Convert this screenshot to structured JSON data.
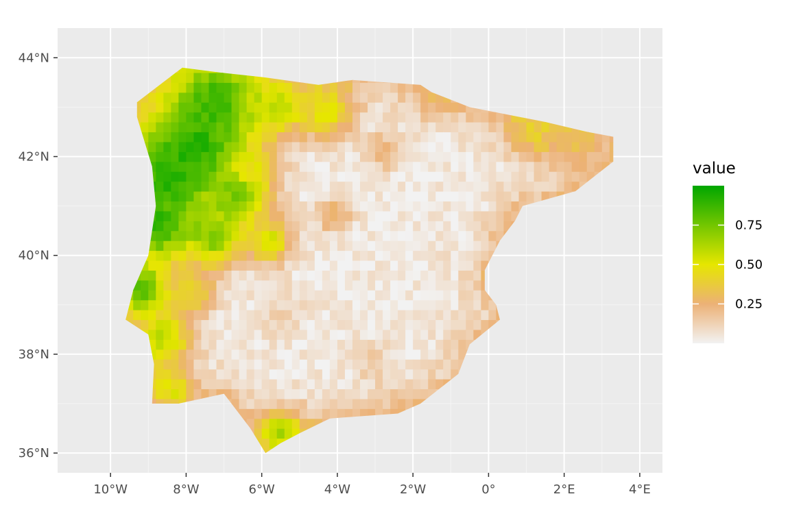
{
  "chart_data": {
    "type": "heatmap",
    "subtype": "raster-map",
    "region_shown": "Iberian Peninsula",
    "xlim": [
      -11.4,
      4.6
    ],
    "ylim": [
      35.6,
      44.6
    ],
    "x_ticks": [
      {
        "value": -10,
        "label": "10°W"
      },
      {
        "value": -8,
        "label": "8°W"
      },
      {
        "value": -6,
        "label": "6°W"
      },
      {
        "value": -4,
        "label": "4°W"
      },
      {
        "value": -2,
        "label": "2°W"
      },
      {
        "value": 0,
        "label": "0°"
      },
      {
        "value": 2,
        "label": "2°E"
      },
      {
        "value": 4,
        "label": "4°E"
      }
    ],
    "y_ticks": [
      {
        "value": 36,
        "label": "36°N"
      },
      {
        "value": 38,
        "label": "38°N"
      },
      {
        "value": 40,
        "label": "40°N"
      },
      {
        "value": 42,
        "label": "42°N"
      },
      {
        "value": 44,
        "label": "44°N"
      }
    ],
    "grid": true,
    "legend": {
      "title": "value",
      "placement": "right",
      "range": [
        0,
        1
      ],
      "ticks": [
        {
          "value": 0.25,
          "label": "0.25"
        },
        {
          "value": 0.5,
          "label": "0.50"
        },
        {
          "value": 0.75,
          "label": "0.75"
        }
      ],
      "colors": [
        "#f2f2f2",
        "#ecb176",
        "#e6e600",
        "#00a600"
      ]
    },
    "outline": [
      [
        -8.1,
        43.8
      ],
      [
        -7.1,
        43.7
      ],
      [
        -5.9,
        43.6
      ],
      [
        -4.5,
        43.45
      ],
      [
        -3.6,
        43.55
      ],
      [
        -1.8,
        43.45
      ],
      [
        -1.5,
        43.3
      ],
      [
        -0.5,
        43.0
      ],
      [
        1.5,
        42.7
      ],
      [
        2.6,
        42.5
      ],
      [
        3.3,
        42.4
      ],
      [
        3.3,
        41.9
      ],
      [
        2.3,
        41.3
      ],
      [
        0.9,
        41.0
      ],
      [
        0.7,
        40.7
      ],
      [
        0.3,
        40.3
      ],
      [
        -0.1,
        39.7
      ],
      [
        -0.1,
        39.3
      ],
      [
        0.2,
        39.0
      ],
      [
        0.3,
        38.7
      ],
      [
        -0.5,
        38.2
      ],
      [
        -0.8,
        37.6
      ],
      [
        -1.8,
        37.0
      ],
      [
        -2.4,
        36.8
      ],
      [
        -4.2,
        36.7
      ],
      [
        -5.0,
        36.4
      ],
      [
        -5.5,
        36.2
      ],
      [
        -5.9,
        36.0
      ],
      [
        -6.3,
        36.5
      ],
      [
        -7.0,
        37.2
      ],
      [
        -8.2,
        37.0
      ],
      [
        -8.9,
        37.0
      ],
      [
        -8.85,
        37.8
      ],
      [
        -9.0,
        38.4
      ],
      [
        -9.6,
        38.7
      ],
      [
        -9.4,
        39.3
      ],
      [
        -9.0,
        40.0
      ],
      [
        -8.8,
        41.0
      ],
      [
        -8.9,
        41.8
      ],
      [
        -9.3,
        42.8
      ],
      [
        -9.3,
        43.1
      ],
      [
        -8.1,
        43.8
      ]
    ],
    "value_zones": [
      {
        "lon": -7.8,
        "lat": 42.2,
        "value": 0.95,
        "radius": 1.05
      },
      {
        "lon": -8.5,
        "lat": 41.5,
        "value": 0.92,
        "radius": 0.8
      },
      {
        "lon": -8.7,
        "lat": 40.6,
        "value": 0.9,
        "radius": 0.7
      },
      {
        "lon": -9.1,
        "lat": 39.3,
        "value": 0.88,
        "radius": 0.5
      },
      {
        "lon": -7.2,
        "lat": 43.1,
        "value": 0.88,
        "radius": 0.9
      },
      {
        "lon": -6.6,
        "lat": 41.2,
        "value": 0.78,
        "radius": 0.6
      },
      {
        "lon": -7.3,
        "lat": 40.4,
        "value": 0.74,
        "radius": 0.6
      },
      {
        "lon": -5.6,
        "lat": 43.0,
        "value": 0.62,
        "radius": 0.55
      },
      {
        "lon": -4.3,
        "lat": 42.95,
        "value": 0.52,
        "radius": 0.55
      },
      {
        "lon": -8.6,
        "lat": 38.3,
        "value": 0.6,
        "radius": 0.6
      },
      {
        "lon": -7.9,
        "lat": 39.3,
        "value": 0.45,
        "radius": 0.5
      },
      {
        "lon": -8.4,
        "lat": 37.3,
        "value": 0.5,
        "radius": 0.45
      },
      {
        "lon": -5.5,
        "lat": 36.4,
        "value": 0.62,
        "radius": 0.5
      },
      {
        "lon": -5.8,
        "lat": 40.3,
        "value": 0.55,
        "radius": 0.45
      },
      {
        "lon": -6.2,
        "lat": 41.8,
        "value": 0.5,
        "radius": 0.4
      },
      {
        "lon": 1.2,
        "lat": 42.55,
        "value": 0.42,
        "radius": 0.55
      },
      {
        "lon": 2.2,
        "lat": 42.3,
        "value": 0.35,
        "radius": 0.55
      },
      {
        "lon": -1.4,
        "lat": 43.25,
        "value": 0.3,
        "radius": 0.45
      },
      {
        "lon": -2.8,
        "lat": 42.1,
        "value": 0.28,
        "radius": 0.35
      },
      {
        "lon": -4.1,
        "lat": 40.8,
        "value": 0.3,
        "radius": 0.35
      },
      {
        "lon": -2.3,
        "lat": 37.0,
        "value": 0.25,
        "radius": 0.35
      },
      {
        "lon": -3.0,
        "lat": 37.8,
        "value": 0.14,
        "radius": 0.45
      },
      {
        "lon": -5.5,
        "lat": 38.8,
        "value": 0.12,
        "radius": 0.55
      },
      {
        "lon": 0.6,
        "lat": 40.6,
        "value": 0.22,
        "radius": 0.35
      }
    ],
    "border_value": 0.22,
    "interior_value": 0.03
  }
}
